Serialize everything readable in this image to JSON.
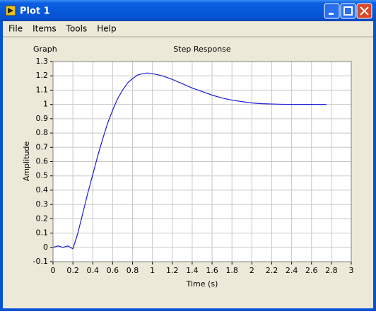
{
  "window": {
    "title": "Plot 1",
    "menu": [
      "File",
      "Items",
      "Tools",
      "Help"
    ]
  },
  "graph_label": "Graph",
  "chart_data": {
    "type": "line",
    "title": "Step Response",
    "x_label": "Time (s)",
    "y_label": "Amplitude",
    "x": [
      0,
      0.05,
      0.1,
      0.15,
      0.2,
      0.25,
      0.3,
      0.35,
      0.4,
      0.45,
      0.5,
      0.55,
      0.6,
      0.65,
      0.7,
      0.75,
      0.8,
      0.85,
      0.9,
      0.95,
      1.0,
      1.1,
      1.2,
      1.3,
      1.4,
      1.5,
      1.6,
      1.7,
      1.8,
      1.9,
      2.0,
      2.1,
      2.2,
      2.3,
      2.4,
      2.5,
      2.6,
      2.75
    ],
    "values": [
      0,
      0.01,
      0.0,
      0.01,
      -0.01,
      0.1,
      0.24,
      0.38,
      0.51,
      0.64,
      0.76,
      0.87,
      0.96,
      1.04,
      1.1,
      1.15,
      1.18,
      1.205,
      1.215,
      1.22,
      1.215,
      1.2,
      1.175,
      1.145,
      1.115,
      1.09,
      1.065,
      1.045,
      1.03,
      1.02,
      1.01,
      1.005,
      1.003,
      1.001,
      1.0,
      1.0,
      1.0,
      1.0
    ],
    "color": "#1c1cd6",
    "xlim": [
      0,
      3
    ],
    "xticks": [
      0,
      0.2,
      0.4,
      0.6,
      0.8,
      1,
      1.2,
      1.4,
      1.6,
      1.8,
      2,
      2.2,
      2.4,
      2.6,
      2.8,
      3
    ],
    "ylim": [
      -0.1,
      1.3
    ],
    "yticks": [
      -0.1,
      0,
      0.1,
      0.2,
      0.3,
      0.4,
      0.5,
      0.6,
      0.7,
      0.8,
      0.9,
      1,
      1.1,
      1.2,
      1.3
    ],
    "grid": true
  }
}
